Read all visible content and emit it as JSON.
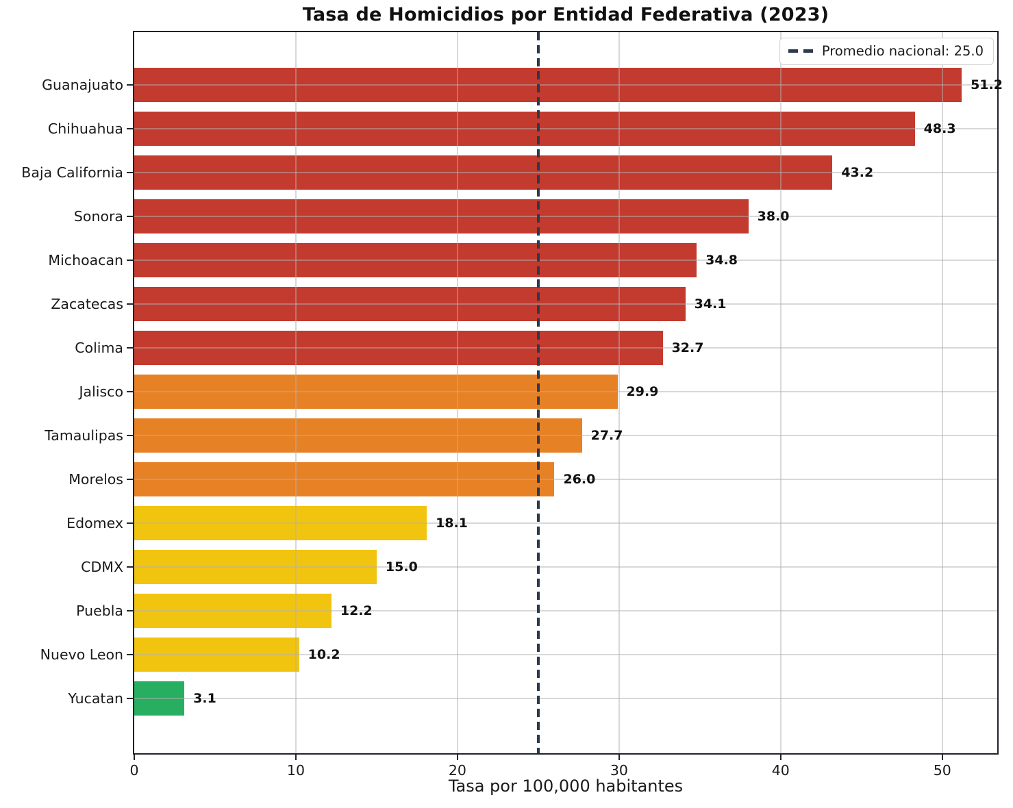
{
  "title": "Tasa de Homicidios por Entidad Federativa (2023)",
  "xlabel": "Tasa por 100,000 habitantes",
  "legend": {
    "promedio_label": "Promedio nacional: 25.0"
  },
  "chart_data": {
    "type": "bar",
    "orientation": "horizontal",
    "title": "Tasa de Homicidios por Entidad Federativa (2023)",
    "xlabel": "Tasa por 100,000 habitantes",
    "ylabel": "",
    "categories": [
      "Guanajuato",
      "Chihuahua",
      "Baja California",
      "Sonora",
      "Michoacan",
      "Zacatecas",
      "Colima",
      "Jalisco",
      "Tamaulipas",
      "Morelos",
      "Edomex",
      "CDMX",
      "Puebla",
      "Nuevo Leon",
      "Yucatan"
    ],
    "values": [
      51.2,
      48.3,
      43.2,
      38.0,
      34.8,
      34.1,
      32.7,
      29.9,
      27.7,
      26.0,
      18.1,
      15.0,
      12.2,
      10.2,
      3.1
    ],
    "bar_colors": [
      "#c33a2e",
      "#c33a2e",
      "#c33a2e",
      "#c33a2e",
      "#c33a2e",
      "#c33a2e",
      "#c33a2e",
      "#e68125",
      "#e68125",
      "#e68125",
      "#f1c40f",
      "#f1c40f",
      "#f1c40f",
      "#f1c40f",
      "#27ae60"
    ],
    "xlim": [
      0,
      53.4
    ],
    "xticks": [
      0,
      10,
      20,
      30,
      40,
      50
    ],
    "grid": true,
    "legend_position": "upper right",
    "reference_line": {
      "value": 25.0,
      "label": "Promedio nacional: 25.0",
      "color": "#2c3a4d",
      "style": "dashed"
    }
  }
}
